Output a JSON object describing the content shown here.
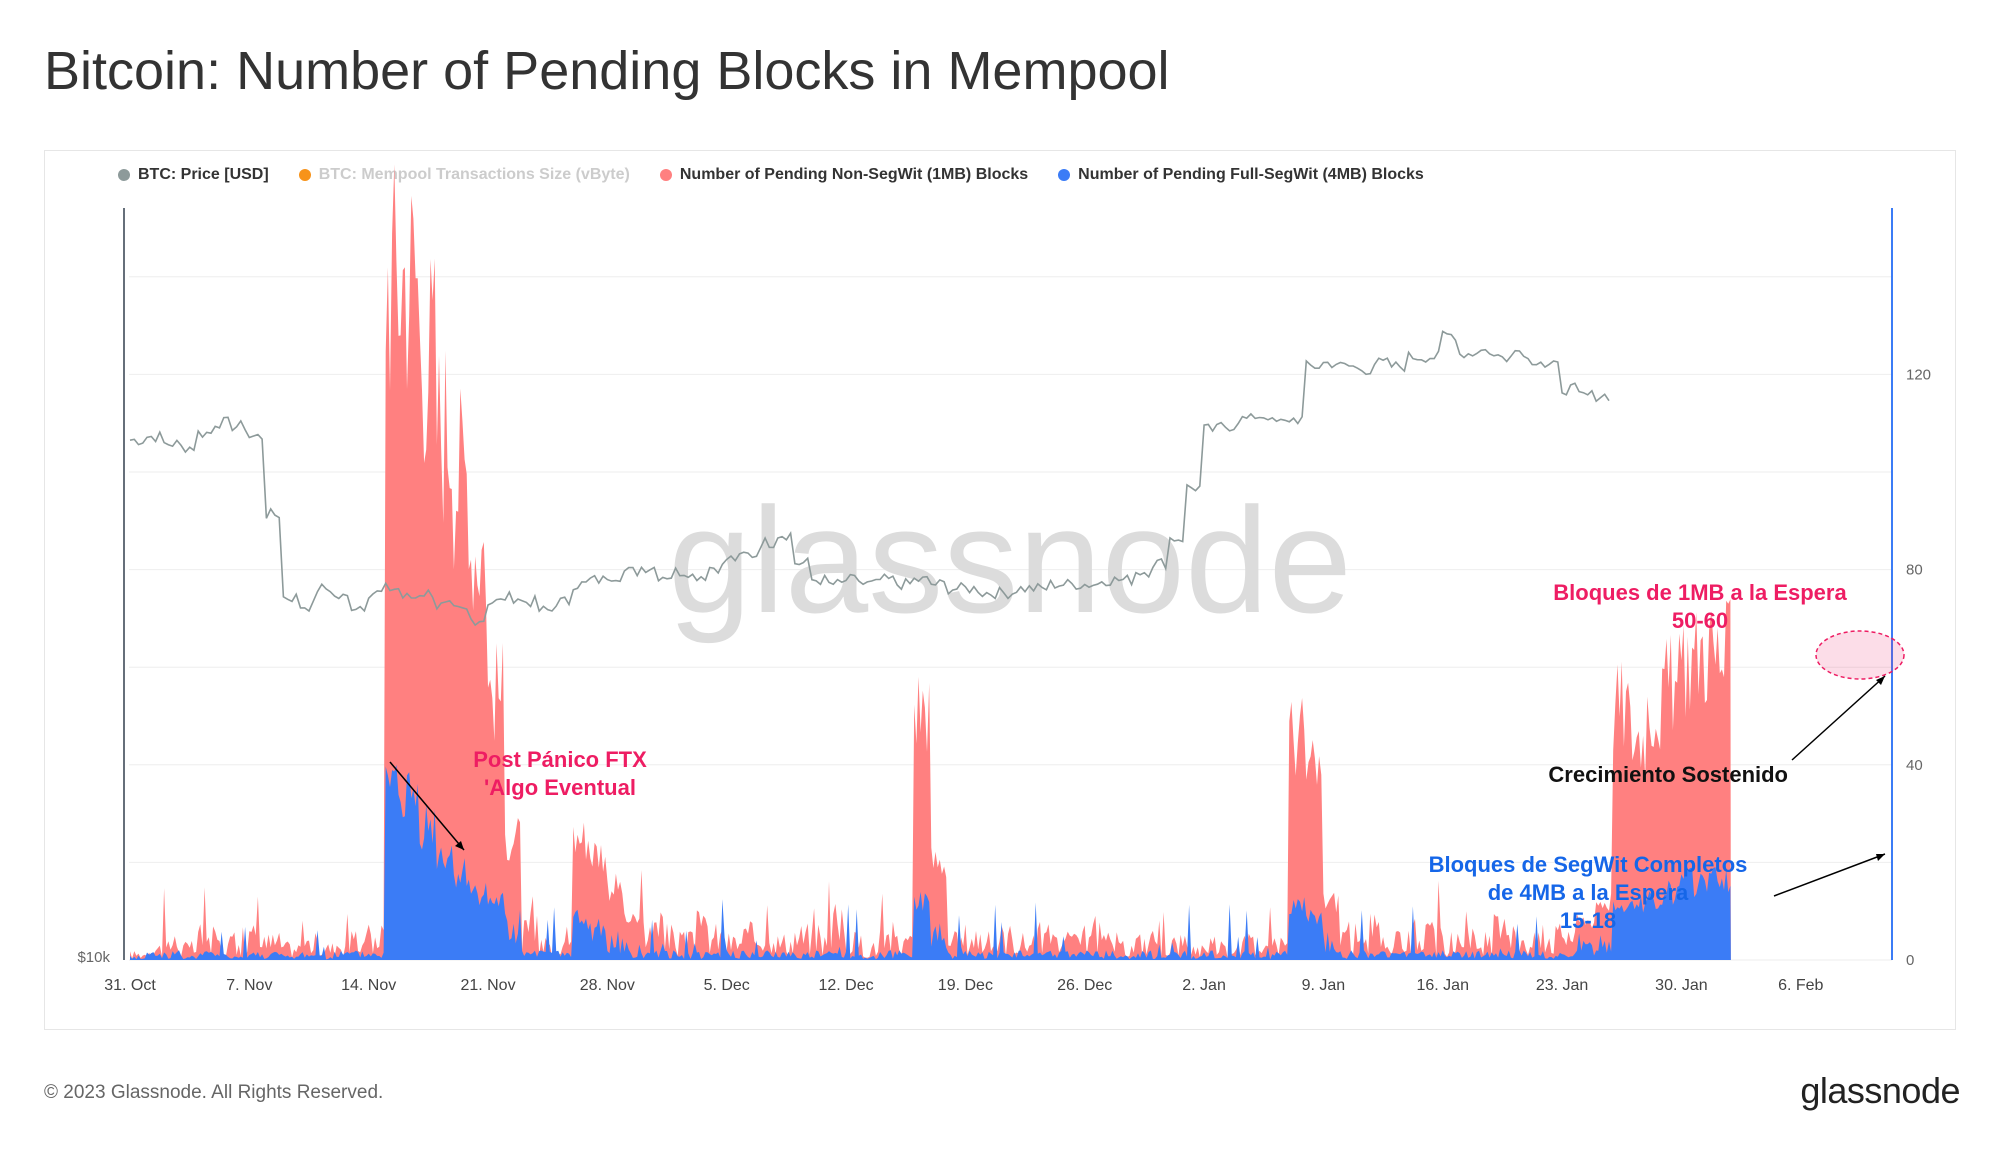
{
  "page": {
    "title": "Bitcoin: Number of Pending Blocks in Mempool",
    "copyright": "© 2023 Glassnode. All Rights Reserved.",
    "logo": "glassnode",
    "watermark": "glassnode"
  },
  "colors": {
    "price": "#8d9a9a",
    "mempool_size": "#f7931a",
    "non_segwit": "#ff8080",
    "full_segwit": "#3b7cf6",
    "annotation_pink": "#ee1d63",
    "annotation_blue": "#1566e8",
    "annotation_black": "#111111"
  },
  "legend": [
    {
      "label": "BTC: Price [USD]",
      "color": "#8d9a9a",
      "enabled": true
    },
    {
      "label": "BTC: Mempool Transactions Size (vByte)",
      "color": "#f7931a",
      "enabled": false
    },
    {
      "label": "Number of Pending Non-SegWit (1MB) Blocks",
      "color": "#ff8080",
      "enabled": true
    },
    {
      "label": "Number of Pending Full-SegWit (4MB) Blocks",
      "color": "#3b7cf6",
      "enabled": true
    }
  ],
  "annotations": {
    "ftx_line1": "Post Pánico FTX",
    "ftx_line2": "'Algo Eventual",
    "onemb_line1": "Bloques de 1MB a la Espera",
    "onemb_line2": "50-60",
    "growth": "Crecimiento Sostenido",
    "segwit_line1": "Bloques de SegWit Completos",
    "segwit_line2": "de 4MB a la Espera",
    "segwit_line3": "15-18"
  },
  "chart_data": {
    "type": "area",
    "x_start": "2022-10-31",
    "x_end": "2023-02-12",
    "xticks": [
      "31. Oct",
      "7. Nov",
      "14. Nov",
      "21. Nov",
      "28. Nov",
      "5. Dec",
      "12. Dec",
      "19. Dec",
      "26. Dec",
      "2. Jan",
      "9. Jan",
      "16. Jan",
      "23. Jan",
      "30. Jan",
      "6. Feb"
    ],
    "y_right": {
      "ticks": [
        0,
        40,
        80,
        120
      ],
      "ylim": [
        0,
        150
      ]
    },
    "y_left": {
      "label": "$10k",
      "scale": "log"
    },
    "series": [
      {
        "name": "BTC: Price [USD]",
        "type": "line",
        "points": [
          [
            0,
            20500
          ],
          [
            1,
            20600
          ],
          [
            2,
            20400
          ],
          [
            3,
            20300
          ],
          [
            4,
            20700
          ],
          [
            5,
            21000
          ],
          [
            6,
            20900
          ],
          [
            7,
            20600
          ],
          [
            8,
            18500
          ],
          [
            9,
            16500
          ],
          [
            10,
            16300
          ],
          [
            11,
            16700
          ],
          [
            12,
            16500
          ],
          [
            13,
            16300
          ],
          [
            14,
            16600
          ],
          [
            15,
            16700
          ],
          [
            16,
            16500
          ],
          [
            17,
            16600
          ],
          [
            18,
            16300
          ],
          [
            19,
            16200
          ],
          [
            20,
            16000
          ],
          [
            21,
            16400
          ],
          [
            22,
            16500
          ],
          [
            23,
            16400
          ],
          [
            24,
            16200
          ],
          [
            25,
            16400
          ],
          [
            26,
            16800
          ],
          [
            27,
            16900
          ],
          [
            28,
            17000
          ],
          [
            29,
            17100
          ],
          [
            30,
            17200
          ],
          [
            31,
            17000
          ],
          [
            32,
            17100
          ],
          [
            33,
            17000
          ],
          [
            34,
            17200
          ],
          [
            35,
            17400
          ],
          [
            36,
            17500
          ],
          [
            37,
            17800
          ],
          [
            38,
            18000
          ],
          [
            39,
            17300
          ],
          [
            40,
            16900
          ],
          [
            41,
            16800
          ],
          [
            42,
            16900
          ],
          [
            43,
            16800
          ],
          [
            44,
            16900
          ],
          [
            45,
            16800
          ],
          [
            46,
            16900
          ],
          [
            47,
            16800
          ],
          [
            48,
            16700
          ],
          [
            49,
            16700
          ],
          [
            50,
            16600
          ],
          [
            51,
            16600
          ],
          [
            52,
            16700
          ],
          [
            53,
            16700
          ],
          [
            54,
            16800
          ],
          [
            55,
            16800
          ],
          [
            56,
            16800
          ],
          [
            57,
            16900
          ],
          [
            58,
            16900
          ],
          [
            59,
            17100
          ],
          [
            60,
            17300
          ],
          [
            61,
            17900
          ],
          [
            62,
            19200
          ],
          [
            63,
            20800
          ],
          [
            64,
            20900
          ],
          [
            65,
            21100
          ],
          [
            66,
            21200
          ],
          [
            67,
            21000
          ],
          [
            68,
            21100
          ],
          [
            69,
            22700
          ],
          [
            70,
            22800
          ],
          [
            71,
            22700
          ],
          [
            72,
            22600
          ],
          [
            73,
            22800
          ],
          [
            74,
            22700
          ],
          [
            75,
            23000
          ],
          [
            76,
            23000
          ],
          [
            77,
            23700
          ],
          [
            78,
            23100
          ],
          [
            79,
            23200
          ],
          [
            80,
            23000
          ],
          [
            81,
            23200
          ],
          [
            82,
            22900
          ],
          [
            83,
            22700
          ],
          [
            84,
            22000
          ],
          [
            85,
            21800
          ],
          [
            86,
            21800
          ]
        ]
      },
      {
        "name": "Number of Pending Non-SegWit (1MB) Blocks",
        "type": "area",
        "points": [
          [
            0,
            1
          ],
          [
            1,
            2
          ],
          [
            2,
            3
          ],
          [
            3,
            2
          ],
          [
            4,
            4
          ],
          [
            5,
            3
          ],
          [
            6,
            2
          ],
          [
            7,
            4
          ],
          [
            8,
            3
          ],
          [
            9,
            2
          ],
          [
            10,
            3
          ],
          [
            11,
            2
          ],
          [
            12,
            3
          ],
          [
            13,
            3
          ],
          [
            14,
            4
          ],
          [
            15,
            140
          ],
          [
            16,
            141
          ],
          [
            17,
            125
          ],
          [
            18,
            110
          ],
          [
            19,
            100
          ],
          [
            20,
            85
          ],
          [
            21,
            55
          ],
          [
            22,
            25
          ],
          [
            23,
            5
          ],
          [
            24,
            3
          ],
          [
            25,
            4
          ],
          [
            26,
            25
          ],
          [
            27,
            22
          ],
          [
            28,
            15
          ],
          [
            29,
            8
          ],
          [
            30,
            5
          ],
          [
            31,
            4
          ],
          [
            32,
            3
          ],
          [
            33,
            5
          ],
          [
            34,
            4
          ],
          [
            35,
            3
          ],
          [
            36,
            4
          ],
          [
            37,
            5
          ],
          [
            38,
            3
          ],
          [
            39,
            4
          ],
          [
            40,
            3
          ],
          [
            41,
            6
          ],
          [
            42,
            3
          ],
          [
            43,
            2
          ],
          [
            44,
            4
          ],
          [
            45,
            3
          ],
          [
            46,
            52
          ],
          [
            47,
            20
          ],
          [
            48,
            3
          ],
          [
            49,
            4
          ],
          [
            50,
            3
          ],
          [
            51,
            4
          ],
          [
            52,
            3
          ],
          [
            53,
            4
          ],
          [
            54,
            3
          ],
          [
            55,
            3
          ],
          [
            56,
            4
          ],
          [
            57,
            3
          ],
          [
            58,
            2
          ],
          [
            59,
            3
          ],
          [
            60,
            2
          ],
          [
            61,
            3
          ],
          [
            62,
            2
          ],
          [
            63,
            3
          ],
          [
            64,
            2
          ],
          [
            65,
            3
          ],
          [
            66,
            2
          ],
          [
            67,
            3
          ],
          [
            68,
            46
          ],
          [
            69,
            38
          ],
          [
            70,
            12
          ],
          [
            71,
            4
          ],
          [
            72,
            3
          ],
          [
            73,
            4
          ],
          [
            74,
            3
          ],
          [
            75,
            5
          ],
          [
            76,
            4
          ],
          [
            77,
            3
          ],
          [
            78,
            4
          ],
          [
            79,
            3
          ],
          [
            80,
            5
          ],
          [
            81,
            4
          ],
          [
            82,
            3
          ],
          [
            83,
            4
          ],
          [
            84,
            5
          ],
          [
            85,
            8
          ],
          [
            86,
            12
          ],
          [
            87,
            52
          ],
          [
            88,
            46
          ],
          [
            89,
            52
          ],
          [
            90,
            56
          ],
          [
            91,
            62
          ],
          [
            92,
            64
          ],
          [
            93,
            62
          ]
        ]
      },
      {
        "name": "Number of Pending Full-SegWit (4MB) Blocks",
        "type": "area",
        "points": [
          [
            0,
            0.5
          ],
          [
            1,
            1
          ],
          [
            2,
            1
          ],
          [
            3,
            0.5
          ],
          [
            4,
            1
          ],
          [
            5,
            1
          ],
          [
            6,
            0.5
          ],
          [
            7,
            1
          ],
          [
            8,
            1
          ],
          [
            9,
            0.5
          ],
          [
            10,
            1
          ],
          [
            11,
            0.5
          ],
          [
            12,
            1
          ],
          [
            13,
            1
          ],
          [
            14,
            1
          ],
          [
            15,
            35
          ],
          [
            16,
            34
          ],
          [
            17,
            28
          ],
          [
            18,
            22
          ],
          [
            19,
            18
          ],
          [
            20,
            14
          ],
          [
            21,
            12
          ],
          [
            22,
            6
          ],
          [
            23,
            1
          ],
          [
            24,
            1
          ],
          [
            25,
            1
          ],
          [
            26,
            6
          ],
          [
            27,
            5
          ],
          [
            28,
            3
          ],
          [
            29,
            2
          ],
          [
            30,
            1
          ],
          [
            31,
            1
          ],
          [
            32,
            1
          ],
          [
            33,
            1
          ],
          [
            34,
            1
          ],
          [
            35,
            1
          ],
          [
            36,
            1
          ],
          [
            37,
            1
          ],
          [
            38,
            1
          ],
          [
            39,
            1
          ],
          [
            40,
            1
          ],
          [
            41,
            1
          ],
          [
            42,
            1
          ],
          [
            43,
            0.5
          ],
          [
            44,
            1
          ],
          [
            45,
            1
          ],
          [
            46,
            12
          ],
          [
            47,
            4
          ],
          [
            48,
            1
          ],
          [
            49,
            1
          ],
          [
            50,
            1
          ],
          [
            51,
            1
          ],
          [
            52,
            1
          ],
          [
            53,
            1
          ],
          [
            54,
            1
          ],
          [
            55,
            1
          ],
          [
            56,
            1
          ],
          [
            57,
            1
          ],
          [
            58,
            0.5
          ],
          [
            59,
            1
          ],
          [
            60,
            0.5
          ],
          [
            61,
            1
          ],
          [
            62,
            0.5
          ],
          [
            63,
            1
          ],
          [
            64,
            0.5
          ],
          [
            65,
            1
          ],
          [
            66,
            0.5
          ],
          [
            67,
            1
          ],
          [
            68,
            11
          ],
          [
            69,
            9
          ],
          [
            70,
            3
          ],
          [
            71,
            1
          ],
          [
            72,
            1
          ],
          [
            73,
            1
          ],
          [
            74,
            1
          ],
          [
            75,
            1
          ],
          [
            76,
            1
          ],
          [
            77,
            1
          ],
          [
            78,
            1
          ],
          [
            79,
            1
          ],
          [
            80,
            1
          ],
          [
            81,
            1
          ],
          [
            82,
            1
          ],
          [
            83,
            1
          ],
          [
            84,
            1
          ],
          [
            85,
            2
          ],
          [
            86,
            3
          ],
          [
            87,
            12
          ],
          [
            88,
            11
          ],
          [
            89,
            12
          ],
          [
            90,
            14
          ],
          [
            91,
            16
          ],
          [
            92,
            17
          ],
          [
            93,
            17
          ]
        ]
      }
    ]
  }
}
